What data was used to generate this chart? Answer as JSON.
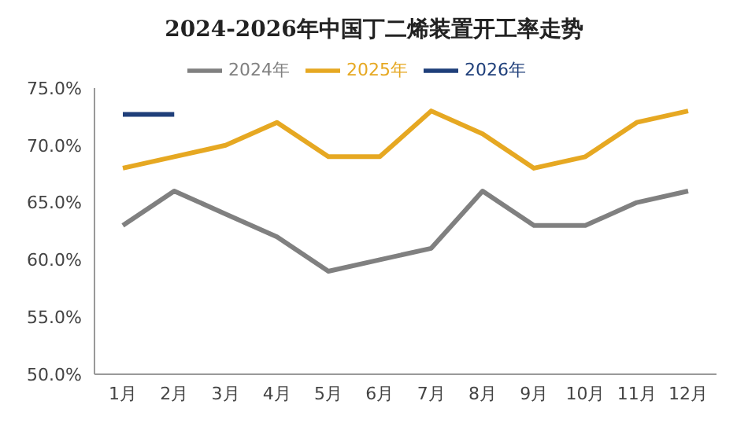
{
  "chart_data": {
    "type": "line",
    "title": "2024-2026年中国丁二烯装置开工率走势",
    "categories": [
      "1月",
      "2月",
      "3月",
      "4月",
      "5月",
      "6月",
      "7月",
      "8月",
      "9月",
      "10月",
      "11月",
      "12月"
    ],
    "series": [
      {
        "name": "2024年",
        "color": "#808080",
        "values": [
          63,
          66,
          64,
          62,
          59,
          60,
          61,
          66,
          63,
          63,
          65,
          66
        ]
      },
      {
        "name": "2025年",
        "color": "#e6a822",
        "values": [
          68,
          69,
          70,
          72,
          69,
          69,
          73,
          71,
          68,
          69,
          72,
          73
        ]
      },
      {
        "name": "2026年",
        "color": "#1f3f7a",
        "values": [
          72.7,
          72.7,
          null,
          null,
          null,
          null,
          null,
          null,
          null,
          null,
          null,
          null
        ]
      }
    ],
    "ylim": [
      50,
      75
    ],
    "yticks": [
      {
        "value": 50,
        "label": "50.0%"
      },
      {
        "value": 55,
        "label": "55.0%"
      },
      {
        "value": 60,
        "label": "60.0%"
      },
      {
        "value": 65,
        "label": "65.0%"
      },
      {
        "value": 70,
        "label": "70.0%"
      },
      {
        "value": 75,
        "label": "75.0%"
      }
    ],
    "grid": false,
    "legend": "top",
    "marker": "none",
    "line_style": "solid"
  }
}
